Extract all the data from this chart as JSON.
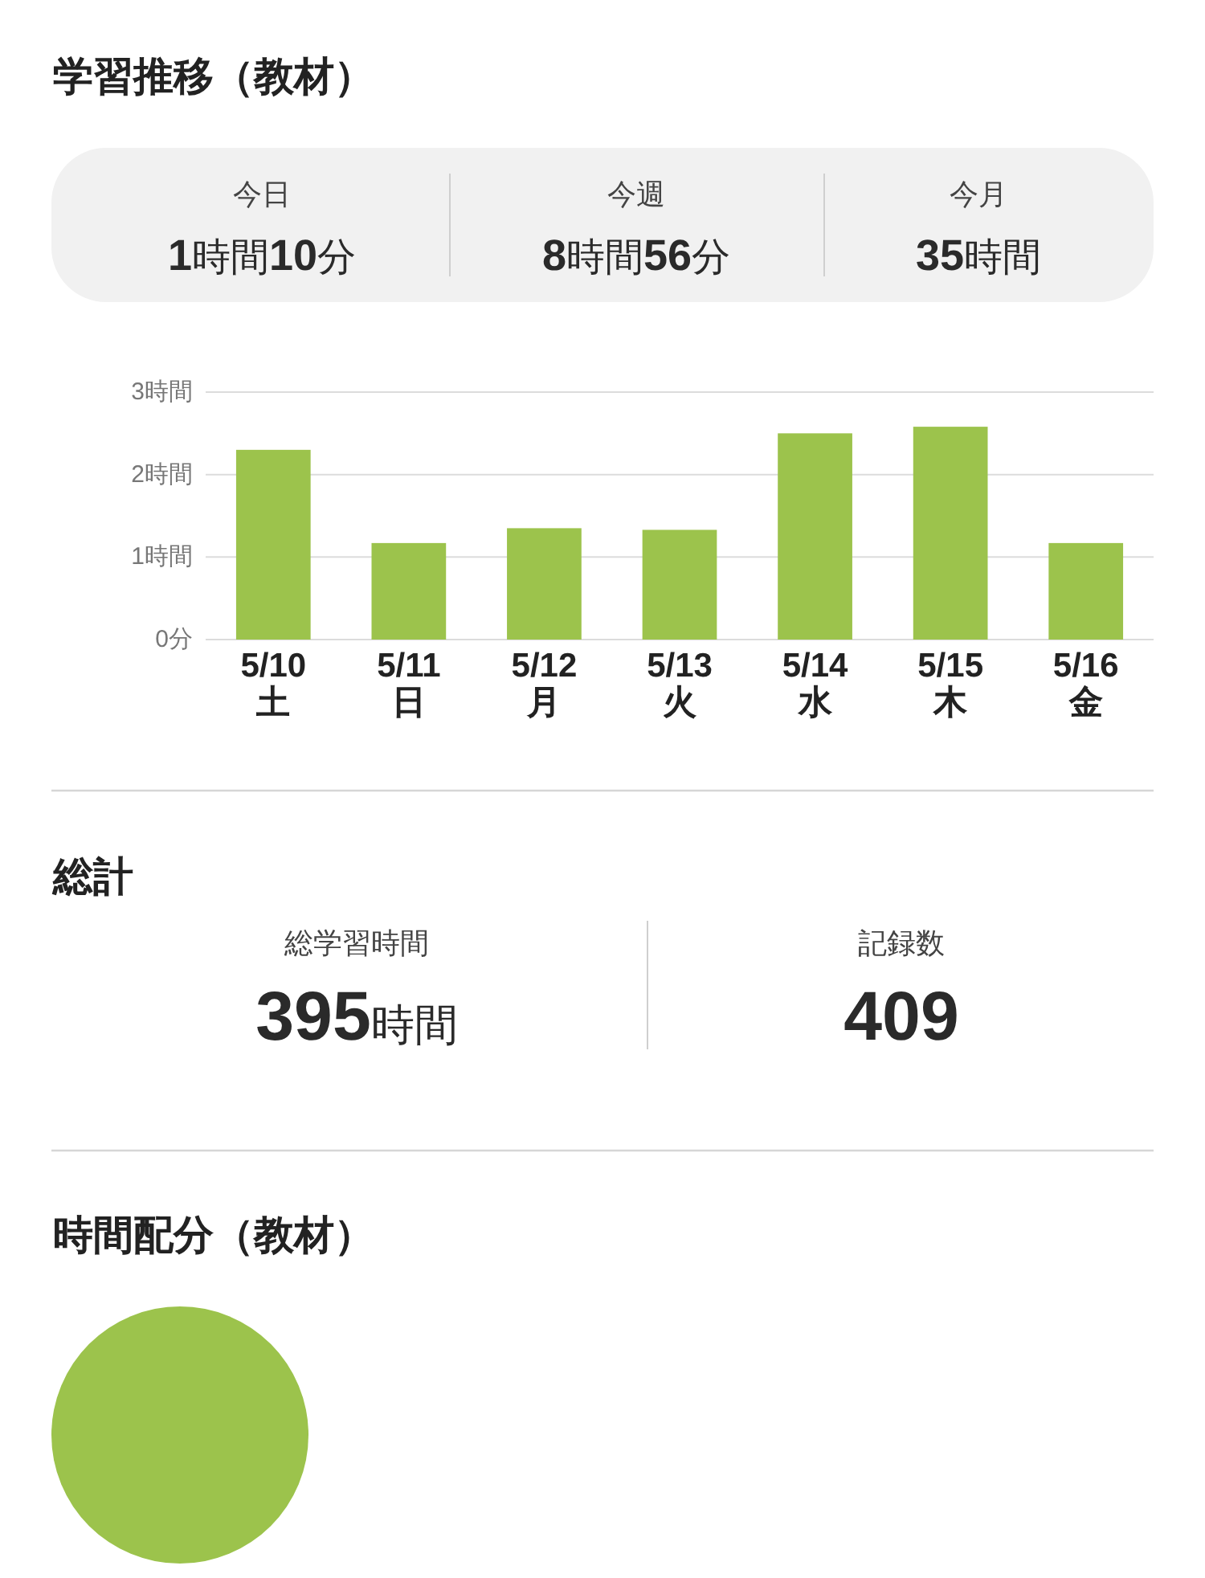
{
  "chart_data": [
    {
      "type": "other",
      "title": "学習推移（教材）",
      "annotations": [
        "今日",
        "1時間10分",
        "今週",
        "8時間56分",
        "今月",
        "35時間"
      ]
    },
    {
      "type": "bar",
      "categories": [
        "5/10\n土",
        "5/11\n日",
        "5/12\n月",
        "5/13\n火",
        "5/14\n水",
        "5/15\n木",
        "5/16\n金"
      ],
      "values": [
        2.3,
        1.17,
        1.35,
        1.33,
        2.5,
        2.58,
        1.17
      ],
      "color": "#9cc34c",
      "ylim": [
        0,
        3
      ],
      "yticks": [
        {
          "value": 0,
          "label": "0分"
        },
        {
          "value": 1,
          "label": "1時間"
        },
        {
          "value": 2,
          "label": "2時間"
        },
        {
          "value": 3,
          "label": "3時間"
        }
      ],
      "grid": "y"
    },
    {
      "type": "other",
      "title": "総計",
      "annotations": [
        "総学習時間",
        "395時間",
        "記録数",
        "409"
      ]
    },
    {
      "type": "pie",
      "title": "時間配分（教材）",
      "categories": [
        null
      ],
      "values": [
        100
      ],
      "colors": [
        "#9cc34c"
      ]
    }
  ]
}
